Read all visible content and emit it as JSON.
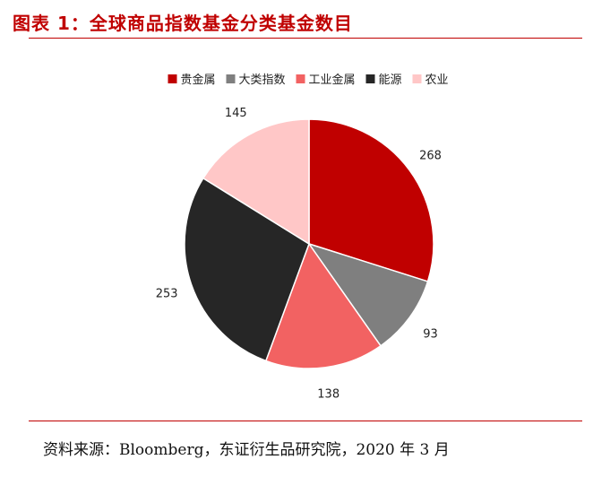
{
  "header": {
    "title": "图表 1：全球商品指数基金分类基金数目"
  },
  "footer": {
    "source": "资料来源：Bloomberg，东证衍生品研究院，2020 年 3 月"
  },
  "chart_data": {
    "type": "pie",
    "title": "",
    "categories": [
      "贵金属",
      "大类指数",
      "工业金属",
      "能源",
      "农业"
    ],
    "values": [
      268,
      93,
      138,
      253,
      145
    ],
    "colors": [
      "#c00000",
      "#7f7f7f",
      "#f26262",
      "#262626",
      "#ffc7c7"
    ],
    "start_angle": "12 o'clock",
    "direction": "clockwise",
    "legend": "top",
    "data_labels": true
  }
}
